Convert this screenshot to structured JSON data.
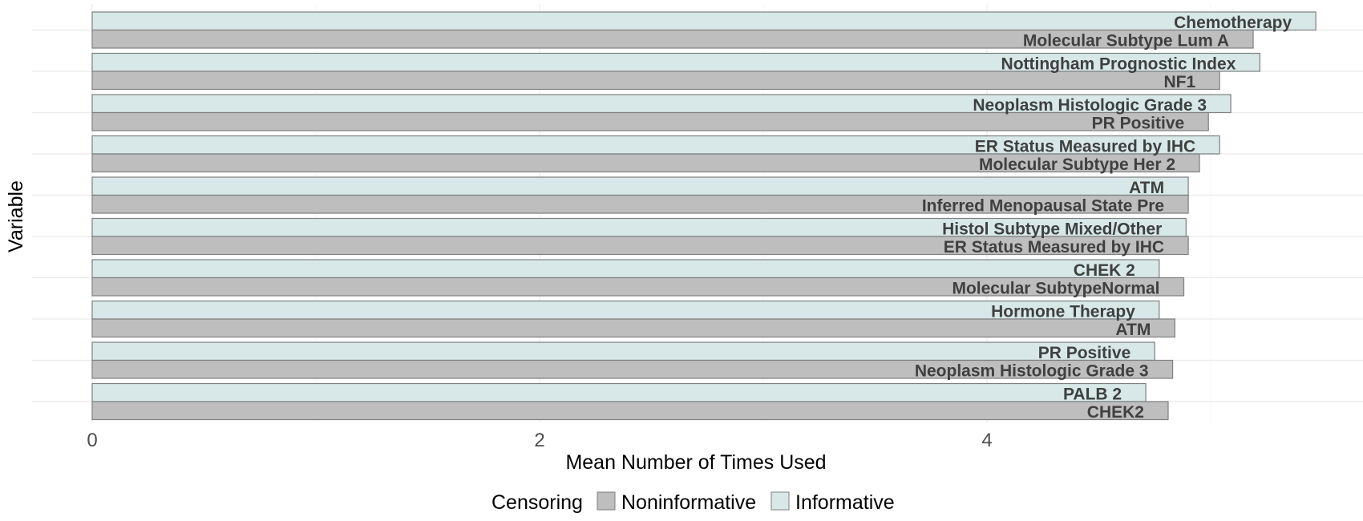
{
  "chart_data": {
    "type": "bar",
    "orientation": "horizontal",
    "xlabel": "Mean Number of Times Used",
    "ylabel": "Variable",
    "xlim": [
      0,
      5.5
    ],
    "x_ticks": [
      0,
      2,
      4
    ],
    "grid": true,
    "legend": {
      "title": "Censoring",
      "position": "bottom",
      "entries": [
        {
          "name": "Noninformative",
          "color": "#bebebe"
        },
        {
          "name": "Informative",
          "color": "#d8e8e8"
        }
      ]
    },
    "series": [
      {
        "name": "Informative",
        "color": "#d8e8e8",
        "labels": [
          "Chemotherapy",
          "Nottingham Prognostic Index",
          "Neoplasm Histologic Grade 3",
          "ER Status Measured by IHC",
          "ATM",
          "Histol Subtype Mixed/Other",
          "CHEK 2",
          "Hormone Therapy",
          "PR Positive",
          "PALB 2"
        ],
        "values": [
          5.47,
          5.22,
          5.09,
          5.04,
          4.9,
          4.89,
          4.77,
          4.77,
          4.75,
          4.71
        ]
      },
      {
        "name": "Noninformative",
        "color": "#bebebe",
        "labels": [
          "Molecular Subtype Lum A",
          "NF1",
          "PR Positive",
          "Molecular Subtype Her 2",
          "Inferred Menopausal State Pre",
          "ER Status Measured by IHC",
          "Molecular SubtypeNormal",
          "ATM",
          "Neoplasm Histologic Grade 3",
          "CHEK2"
        ],
        "values": [
          5.19,
          5.04,
          4.99,
          4.95,
          4.9,
          4.9,
          4.88,
          4.84,
          4.83,
          4.81
        ]
      }
    ]
  }
}
